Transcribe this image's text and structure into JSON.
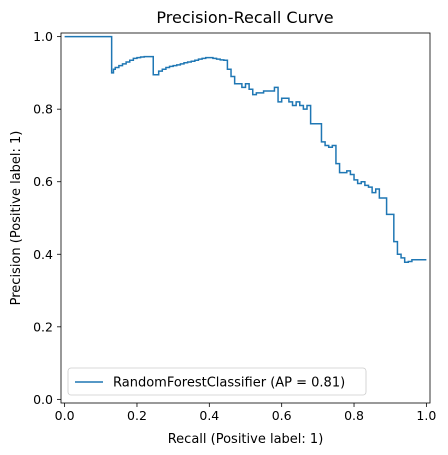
{
  "chart_data": {
    "type": "line",
    "title": "Precision-Recall Curve",
    "xlabel": "Recall (Positive label: 1)",
    "ylabel": "Precision (Positive label: 1)",
    "xlim": [
      -0.01,
      1.01
    ],
    "ylim": [
      -0.01,
      1.01
    ],
    "xticks": [
      "0.0",
      "0.2",
      "0.4",
      "0.6",
      "0.8",
      "1.0"
    ],
    "yticks": [
      "0.0",
      "0.2",
      "0.4",
      "0.6",
      "0.8",
      "1.0"
    ],
    "grid": false,
    "legend": {
      "placement": "lower-left",
      "entries": [
        "RandomForestClassifier (AP = 0.81)"
      ]
    },
    "series": [
      {
        "name": "RandomForestClassifier (AP = 0.81)",
        "color": "#1f77b4",
        "step": true,
        "x": [
          0.0,
          0.13,
          0.13,
          0.135,
          0.14,
          0.15,
          0.16,
          0.17,
          0.18,
          0.19,
          0.2,
          0.21,
          0.22,
          0.245,
          0.245,
          0.26,
          0.27,
          0.28,
          0.29,
          0.3,
          0.31,
          0.32,
          0.33,
          0.34,
          0.35,
          0.36,
          0.37,
          0.38,
          0.39,
          0.4,
          0.41,
          0.42,
          0.43,
          0.44,
          0.45,
          0.455,
          0.46,
          0.47,
          0.48,
          0.49,
          0.5,
          0.51,
          0.52,
          0.53,
          0.55,
          0.56,
          0.58,
          0.59,
          0.6,
          0.62,
          0.63,
          0.64,
          0.65,
          0.66,
          0.67,
          0.68,
          0.7,
          0.705,
          0.71,
          0.72,
          0.73,
          0.74,
          0.75,
          0.76,
          0.77,
          0.78,
          0.79,
          0.8,
          0.81,
          0.82,
          0.83,
          0.84,
          0.85,
          0.86,
          0.87,
          0.88,
          0.89,
          0.9,
          0.91,
          0.92,
          0.93,
          0.94,
          0.95,
          0.96,
          0.97,
          0.98,
          0.99,
          1.0
        ],
        "y": [
          1.0,
          1.0,
          0.9,
          0.91,
          0.915,
          0.92,
          0.925,
          0.93,
          0.935,
          0.94,
          0.942,
          0.944,
          0.945,
          0.945,
          0.895,
          0.905,
          0.91,
          0.915,
          0.918,
          0.92,
          0.922,
          0.925,
          0.928,
          0.93,
          0.932,
          0.935,
          0.938,
          0.94,
          0.942,
          0.942,
          0.94,
          0.938,
          0.936,
          0.935,
          0.91,
          0.91,
          0.89,
          0.87,
          0.87,
          0.86,
          0.87,
          0.855,
          0.84,
          0.845,
          0.85,
          0.85,
          0.86,
          0.82,
          0.83,
          0.82,
          0.81,
          0.82,
          0.81,
          0.8,
          0.81,
          0.76,
          0.76,
          0.76,
          0.71,
          0.7,
          0.695,
          0.7,
          0.65,
          0.625,
          0.625,
          0.63,
          0.62,
          0.605,
          0.595,
          0.6,
          0.59,
          0.585,
          0.57,
          0.58,
          0.555,
          0.555,
          0.51,
          0.51,
          0.435,
          0.4,
          0.39,
          0.378,
          0.38,
          0.385,
          0.385,
          0.385,
          0.385,
          0.385
        ]
      }
    ]
  }
}
